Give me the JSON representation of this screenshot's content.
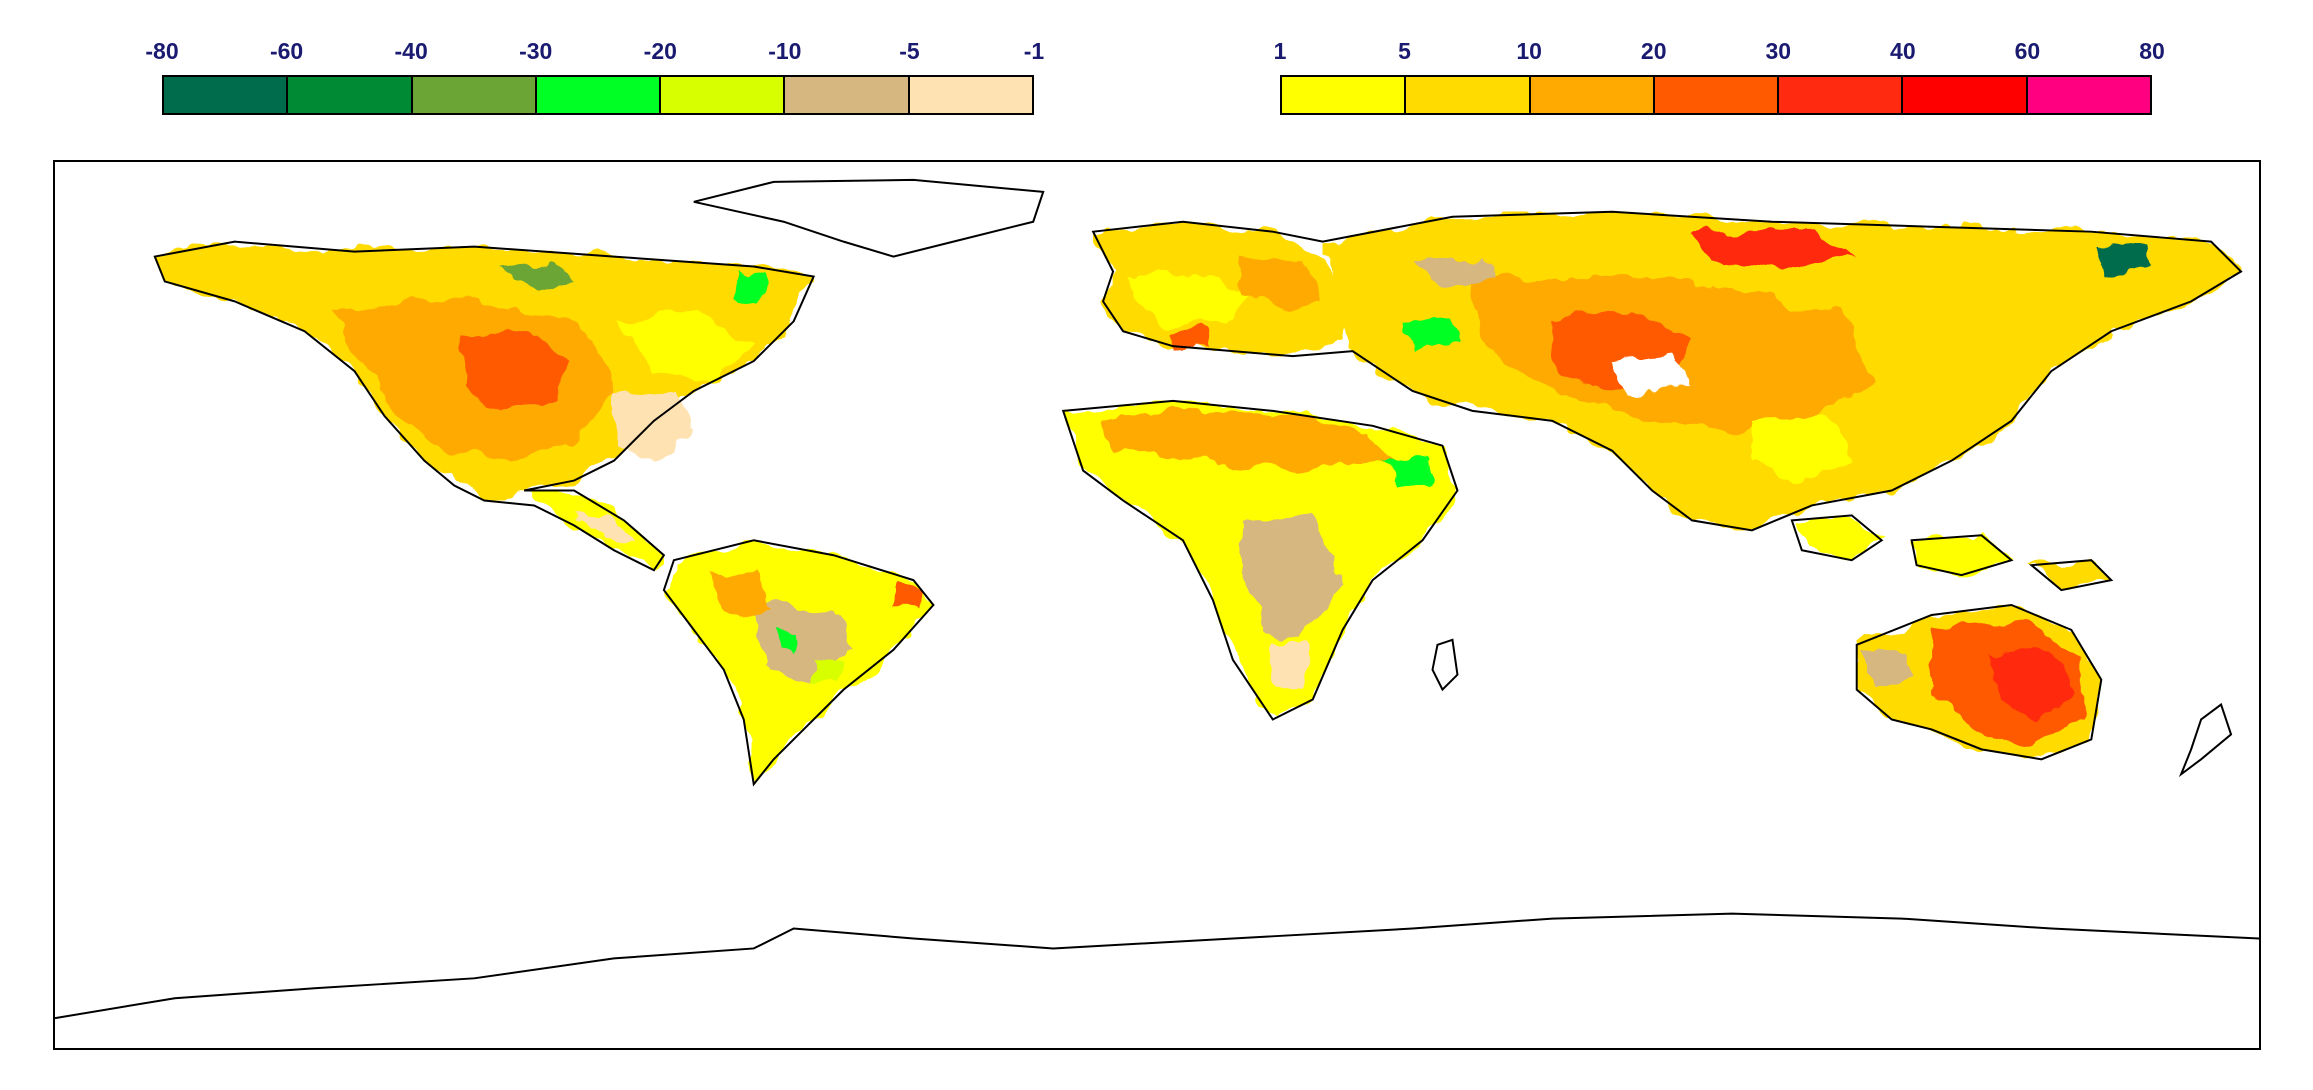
{
  "legend_negative": {
    "labels": [
      "-80",
      "-60",
      "-40",
      "-30",
      "-20",
      "-10",
      "-5",
      "-1"
    ],
    "colors": [
      "#006c4c",
      "#008a34",
      "#6aa536",
      "#00ff24",
      "#d8ff00",
      "#d6b77f",
      "#ffe2b2"
    ]
  },
  "legend_positive": {
    "labels": [
      "1",
      "5",
      "10",
      "20",
      "30",
      "40",
      "60",
      "80"
    ],
    "colors": [
      "#ffff00",
      "#ffdb00",
      "#ffaa00",
      "#ff5a00",
      "#ff2a10",
      "#ff0000",
      "#ff0080"
    ]
  },
  "map": {
    "projection": "equirectangular",
    "extent": {
      "lon": [
        -180,
        180
      ],
      "lat": [
        -90,
        90
      ]
    }
  }
}
